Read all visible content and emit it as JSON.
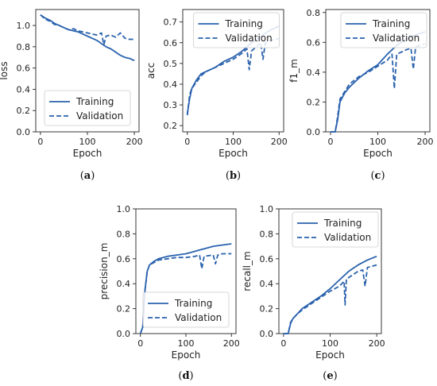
{
  "colors": {
    "series": "#2a62ad",
    "axis": "#222222",
    "background": "#ffffff"
  },
  "chart_data": [
    {
      "type": "line",
      "panel_label": "a",
      "xlabel": "Epoch",
      "ylabel": "loss",
      "xlim": [
        -10,
        210
      ],
      "ylim": [
        0,
        1.15
      ],
      "xticks": [
        0,
        100,
        200
      ],
      "yticks": [
        0.0,
        0.2,
        0.4,
        0.6,
        0.8,
        1.0
      ],
      "legend_position": "lower-center",
      "series": [
        {
          "name": "Training",
          "style": "solid",
          "x": [
            0,
            10,
            20,
            30,
            40,
            50,
            60,
            70,
            80,
            90,
            100,
            110,
            120,
            130,
            140,
            150,
            160,
            170,
            180,
            190,
            200
          ],
          "y": [
            1.1,
            1.07,
            1.05,
            1.02,
            1.0,
            0.98,
            0.96,
            0.95,
            0.94,
            0.92,
            0.9,
            0.88,
            0.86,
            0.83,
            0.8,
            0.78,
            0.75,
            0.72,
            0.7,
            0.69,
            0.67
          ]
        },
        {
          "name": "Validation",
          "style": "dashed",
          "x": [
            0,
            10,
            20,
            30,
            40,
            50,
            60,
            70,
            80,
            90,
            100,
            110,
            120,
            130,
            135,
            140,
            150,
            160,
            170,
            180,
            190,
            200
          ],
          "y": [
            1.1,
            1.06,
            1.04,
            1.01,
            1.0,
            0.98,
            0.96,
            0.97,
            0.95,
            0.94,
            0.93,
            0.92,
            0.91,
            0.93,
            0.82,
            0.9,
            0.91,
            0.89,
            0.93,
            0.88,
            0.87,
            0.87
          ]
        }
      ]
    },
    {
      "type": "line",
      "panel_label": "b",
      "xlabel": "Epoch",
      "ylabel": "acc",
      "xlim": [
        -10,
        210
      ],
      "ylim": [
        0.17,
        0.76
      ],
      "xticks": [
        0,
        100,
        200
      ],
      "yticks": [
        0.2,
        0.3,
        0.4,
        0.5,
        0.6,
        0.7
      ],
      "legend_position": "top-center",
      "series": [
        {
          "name": "Training",
          "style": "solid",
          "x": [
            0,
            5,
            10,
            20,
            30,
            40,
            60,
            80,
            100,
            120,
            140,
            160,
            180,
            200
          ],
          "y": [
            0.26,
            0.33,
            0.38,
            0.42,
            0.45,
            0.46,
            0.48,
            0.51,
            0.53,
            0.56,
            0.6,
            0.63,
            0.66,
            0.68
          ]
        },
        {
          "name": "Validation",
          "style": "dashed",
          "x": [
            0,
            5,
            10,
            20,
            30,
            40,
            60,
            80,
            100,
            120,
            130,
            135,
            140,
            160,
            165,
            170,
            180,
            200
          ],
          "y": [
            0.25,
            0.35,
            0.38,
            0.41,
            0.44,
            0.46,
            0.48,
            0.5,
            0.52,
            0.55,
            0.57,
            0.47,
            0.56,
            0.6,
            0.52,
            0.6,
            0.61,
            0.62
          ]
        }
      ]
    },
    {
      "type": "line",
      "panel_label": "c",
      "xlabel": "Epoch",
      "ylabel": "f1_m",
      "xlim": [
        -10,
        210
      ],
      "ylim": [
        0,
        0.82
      ],
      "xticks": [
        0,
        100,
        200
      ],
      "yticks": [
        0.0,
        0.2,
        0.4,
        0.6,
        0.8
      ],
      "legend_position": "top-right",
      "series": [
        {
          "name": "Training",
          "style": "solid",
          "x": [
            0,
            10,
            15,
            20,
            30,
            40,
            60,
            80,
            100,
            120,
            140,
            160,
            180,
            200
          ],
          "y": [
            0.0,
            0.0,
            0.08,
            0.2,
            0.26,
            0.3,
            0.36,
            0.41,
            0.45,
            0.52,
            0.58,
            0.62,
            0.65,
            0.67
          ]
        },
        {
          "name": "Validation",
          "style": "dashed",
          "x": [
            0,
            10,
            15,
            20,
            30,
            40,
            60,
            80,
            100,
            120,
            130,
            135,
            140,
            160,
            170,
            175,
            180,
            200
          ],
          "y": [
            0.0,
            0.0,
            0.1,
            0.22,
            0.27,
            0.32,
            0.37,
            0.4,
            0.44,
            0.48,
            0.52,
            0.29,
            0.52,
            0.55,
            0.56,
            0.42,
            0.57,
            0.59
          ]
        }
      ]
    },
    {
      "type": "line",
      "panel_label": "d",
      "xlabel": "Epoch",
      "ylabel": "precision_m",
      "xlim": [
        -10,
        210
      ],
      "ylim": [
        0,
        1.0
      ],
      "xticks": [
        0,
        100,
        200
      ],
      "yticks": [
        0.0,
        0.2,
        0.4,
        0.6,
        0.8,
        1.0
      ],
      "legend_position": "lower-center",
      "series": [
        {
          "name": "Training",
          "style": "solid",
          "x": [
            0,
            5,
            10,
            15,
            20,
            30,
            40,
            60,
            80,
            100,
            120,
            140,
            160,
            180,
            200
          ],
          "y": [
            0.0,
            0.05,
            0.35,
            0.5,
            0.55,
            0.58,
            0.6,
            0.62,
            0.63,
            0.64,
            0.66,
            0.68,
            0.7,
            0.71,
            0.72
          ]
        },
        {
          "name": "Validation",
          "style": "dashed",
          "x": [
            0,
            5,
            10,
            15,
            20,
            30,
            40,
            60,
            80,
            100,
            120,
            130,
            135,
            140,
            160,
            165,
            170,
            180,
            200
          ],
          "y": [
            0.0,
            0.05,
            0.35,
            0.5,
            0.55,
            0.57,
            0.59,
            0.6,
            0.61,
            0.61,
            0.62,
            0.63,
            0.52,
            0.62,
            0.63,
            0.56,
            0.63,
            0.64,
            0.64
          ]
        }
      ]
    },
    {
      "type": "line",
      "panel_label": "e",
      "xlabel": "Epoch",
      "ylabel": "recall_m",
      "xlim": [
        -10,
        210
      ],
      "ylim": [
        0,
        1.0
      ],
      "xticks": [
        0,
        100,
        200
      ],
      "yticks": [
        0.0,
        0.2,
        0.4,
        0.6,
        0.8,
        1.0
      ],
      "legend_position": "top-right",
      "series": [
        {
          "name": "Training",
          "style": "solid",
          "x": [
            0,
            10,
            15,
            20,
            30,
            40,
            60,
            80,
            100,
            120,
            140,
            160,
            180,
            200
          ],
          "y": [
            0.0,
            0.0,
            0.08,
            0.12,
            0.16,
            0.2,
            0.25,
            0.3,
            0.36,
            0.43,
            0.5,
            0.55,
            0.59,
            0.62
          ]
        },
        {
          "name": "Validation",
          "style": "dashed",
          "x": [
            0,
            10,
            15,
            20,
            30,
            40,
            60,
            80,
            100,
            120,
            130,
            132,
            135,
            140,
            160,
            170,
            175,
            180,
            200
          ],
          "y": [
            0.0,
            0.0,
            0.09,
            0.12,
            0.16,
            0.19,
            0.24,
            0.29,
            0.34,
            0.38,
            0.42,
            0.23,
            0.44,
            0.45,
            0.5,
            0.51,
            0.38,
            0.53,
            0.55
          ]
        }
      ]
    }
  ]
}
